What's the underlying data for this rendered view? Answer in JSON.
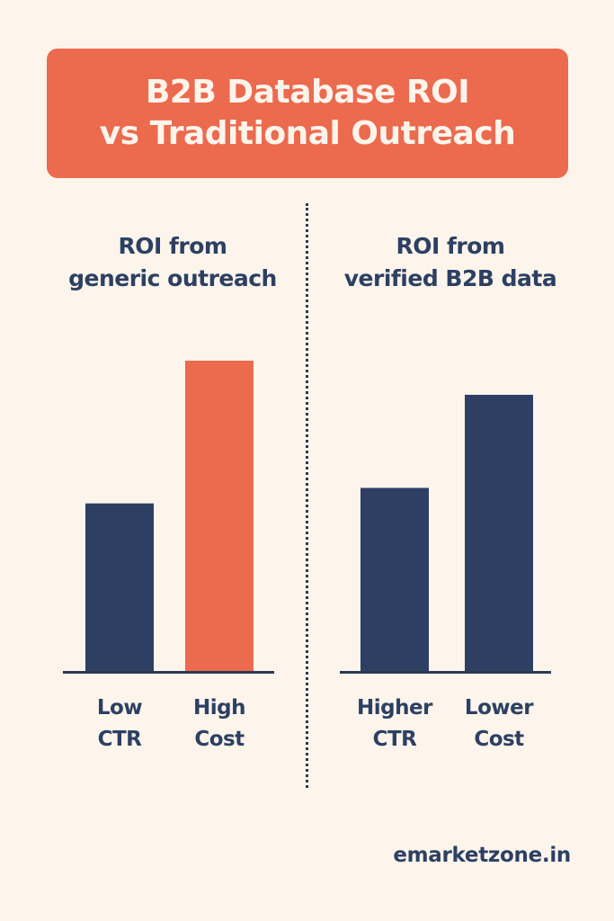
{
  "title": {
    "line1": "B2B Database ROI",
    "line2": "vs Traditional Outreach"
  },
  "footer": "emarketzone.in",
  "colors": {
    "background": "#fdf5ec",
    "accent": "#ec6a4e",
    "navy": "#2d4063",
    "text": "#2d4063"
  },
  "chart_data": [
    {
      "type": "bar",
      "title": [
        "ROI from",
        "generic outreach"
      ],
      "categories": [
        [
          "Low",
          "CTR"
        ],
        [
          "High",
          "Cost"
        ]
      ],
      "values": [
        54,
        100
      ],
      "bar_colors": [
        "#2d4063",
        "#ec6a4e"
      ],
      "ylim": [
        0,
        100
      ],
      "grid": false,
      "legend": "none"
    },
    {
      "type": "bar",
      "title": [
        "ROI from",
        "verified B2B data"
      ],
      "categories": [
        [
          "Higher",
          "CTR"
        ],
        [
          "Lower",
          "Cost"
        ]
      ],
      "values": [
        59,
        89
      ],
      "bar_colors": [
        "#2d4063",
        "#2d4063"
      ],
      "ylim": [
        0,
        100
      ],
      "grid": false,
      "legend": "none"
    }
  ]
}
